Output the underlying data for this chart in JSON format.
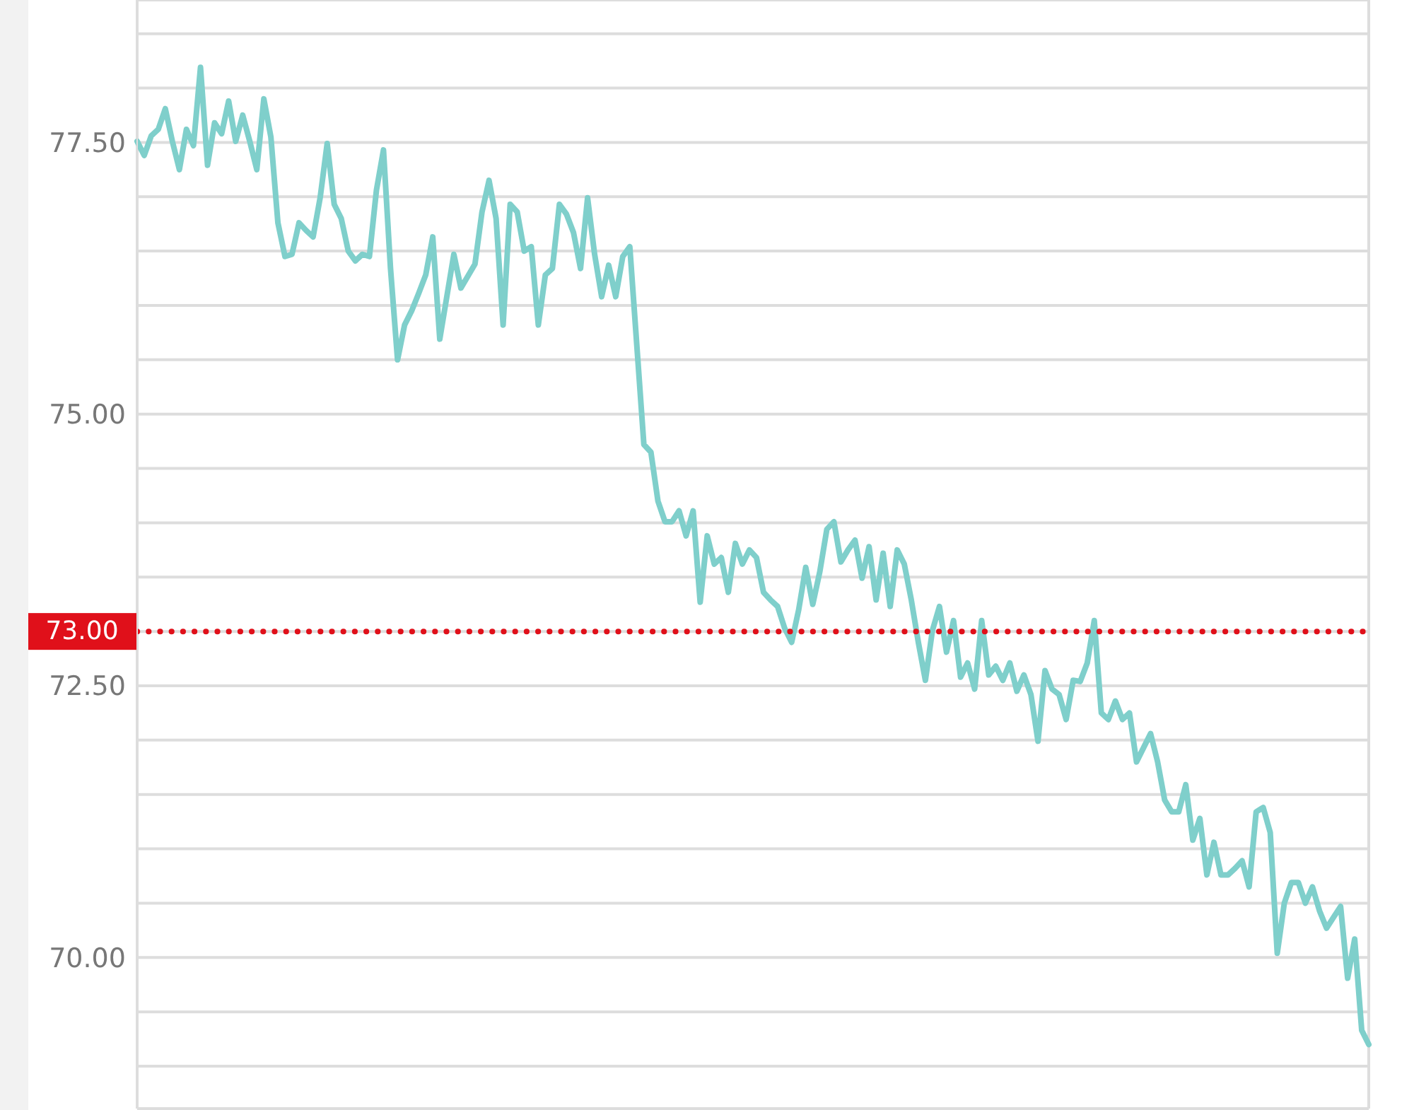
{
  "chart_data": {
    "type": "line",
    "categories": [
      null,
      null,
      null,
      null,
      null,
      null,
      null,
      null,
      null,
      null,
      null,
      null,
      null,
      null,
      null,
      null,
      null,
      null,
      null,
      null,
      null,
      null,
      null,
      null,
      null,
      null,
      null,
      null,
      null,
      null,
      null,
      null,
      null,
      null,
      null,
      null,
      null,
      null,
      null,
      null,
      null,
      null,
      null,
      null,
      null,
      null,
      null,
      null,
      null,
      null,
      null,
      null,
      null,
      null,
      null,
      null,
      null,
      null,
      null,
      null,
      null,
      null,
      null,
      null,
      null,
      null,
      null,
      null,
      null,
      null,
      null,
      null,
      null,
      null,
      null,
      null,
      null,
      null,
      null,
      null,
      null,
      null,
      null,
      null,
      null,
      null,
      null,
      null,
      null,
      null,
      null,
      null,
      null,
      null,
      null,
      null,
      null,
      null,
      null,
      null,
      null,
      null,
      null,
      null,
      null,
      null,
      null,
      null,
      null,
      null,
      null,
      null,
      null,
      null,
      null,
      null,
      null,
      null,
      null,
      null,
      null,
      null,
      null,
      null,
      null,
      null,
      null,
      null,
      null,
      null,
      null,
      null,
      null,
      null,
      null,
      null,
      null,
      null,
      null,
      null,
      null,
      null,
      null,
      null,
      null,
      null,
      null,
      null,
      null,
      null,
      null,
      null,
      null,
      null,
      null,
      null,
      null,
      null,
      null,
      null,
      null,
      null,
      null,
      null,
      null,
      null,
      null,
      null,
      null,
      null,
      null,
      null,
      null,
      null,
      null,
      null
    ],
    "series": [
      {
        "color": "#7fcfcb",
        "values": [
          77.51,
          77.38,
          77.56,
          77.62,
          77.81,
          77.51,
          77.25,
          77.62,
          77.47,
          78.19,
          77.29,
          77.68,
          77.58,
          77.88,
          77.51,
          77.75,
          77.51,
          77.25,
          77.9,
          77.55,
          76.76,
          76.45,
          76.47,
          76.76,
          76.69,
          76.63,
          76.99,
          77.49,
          76.93,
          76.8,
          76.5,
          76.41,
          76.47,
          76.45,
          77.06,
          77.43,
          76.34,
          75.5,
          75.82,
          75.95,
          76.11,
          76.28,
          76.63,
          75.69,
          76.08,
          76.47,
          76.16,
          76.27,
          76.38,
          76.86,
          77.15,
          76.8,
          75.82,
          76.93,
          76.86,
          76.5,
          76.54,
          75.82,
          76.28,
          76.34,
          76.93,
          76.84,
          76.67,
          76.34,
          76.99,
          76.47,
          76.08,
          76.37,
          76.08,
          76.45,
          76.54,
          75.63,
          74.72,
          74.65,
          74.2,
          74.01,
          74.01,
          74.11,
          73.88,
          74.11,
          73.27,
          73.88,
          73.62,
          73.68,
          73.36,
          73.81,
          73.62,
          73.75,
          73.68,
          73.36,
          73.29,
          73.23,
          73.03,
          72.9,
          73.2,
          73.59,
          73.25,
          73.55,
          73.94,
          74.01,
          73.64,
          73.75,
          73.84,
          73.49,
          73.78,
          73.29,
          73.72,
          73.23,
          73.75,
          73.62,
          73.29,
          72.9,
          72.55,
          73.01,
          73.23,
          72.81,
          73.1,
          72.58,
          72.71,
          72.47,
          73.1,
          72.6,
          72.68,
          72.55,
          72.71,
          72.45,
          72.6,
          72.42,
          71.99,
          72.64,
          72.47,
          72.42,
          72.19,
          72.55,
          72.54,
          72.71,
          73.1,
          72.25,
          72.19,
          72.36,
          72.19,
          72.25,
          71.8,
          71.93,
          72.06,
          71.8,
          71.45,
          71.34,
          71.34,
          71.59,
          71.08,
          71.28,
          70.76,
          71.06,
          70.76,
          70.76,
          70.82,
          70.89,
          70.65,
          71.34,
          71.38,
          71.15,
          70.04,
          70.5,
          70.69,
          70.69,
          70.5,
          70.65,
          70.43,
          70.27,
          70.37,
          70.47,
          69.81,
          70.17,
          69.33,
          69.2
        ]
      }
    ],
    "ylim": [
      68.61,
      78.81
    ],
    "yticks": [
      {
        "value": 69,
        "label": null
      },
      {
        "value": 69.5,
        "label": null
      },
      {
        "value": 70,
        "label": "70.00"
      },
      {
        "value": 70.5,
        "label": null
      },
      {
        "value": 71,
        "label": null
      },
      {
        "value": 71.5,
        "label": null
      },
      {
        "value": 72,
        "label": null
      },
      {
        "value": 72.5,
        "label": "72.50"
      },
      {
        "value": 73,
        "label": null
      },
      {
        "value": 73.5,
        "label": null
      },
      {
        "value": 74,
        "label": null
      },
      {
        "value": 74.5,
        "label": null
      },
      {
        "value": 75,
        "label": "75.00"
      },
      {
        "value": 75.5,
        "label": null
      },
      {
        "value": 76,
        "label": null
      },
      {
        "value": 76.5,
        "label": null
      },
      {
        "value": 77,
        "label": null
      },
      {
        "value": 77.5,
        "label": "77.50"
      },
      {
        "value": 78,
        "label": null
      },
      {
        "value": 78.5,
        "label": null
      }
    ],
    "ref_lines": [
      {
        "axis": "y",
        "value": 73,
        "label": "73.00",
        "color": "#e0101a",
        "line_style": "dotted"
      }
    ],
    "grid": true,
    "tick_labels": "y",
    "marker": "none",
    "line_style": "solid"
  }
}
